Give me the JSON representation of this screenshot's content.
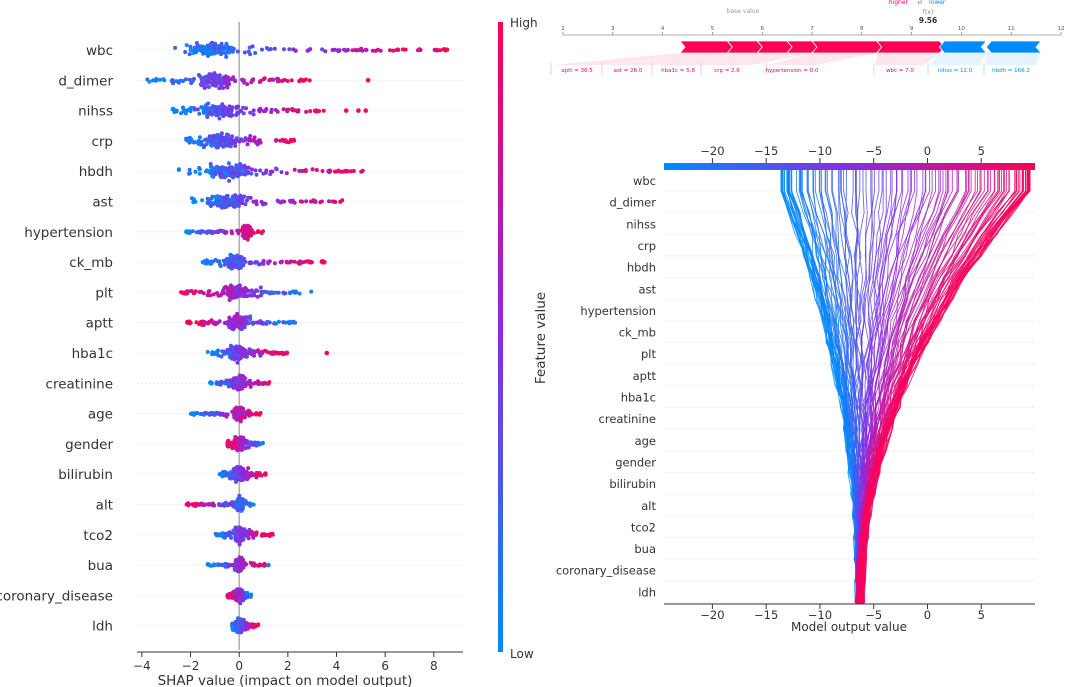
{
  "colors": {
    "high": "#ff0052",
    "mid": "#8a2be2",
    "low": "#008bfb",
    "axis": "#333333",
    "grid": "#cccccc"
  },
  "chart_data": [
    {
      "id": "summary",
      "type": "scatter",
      "title": "",
      "xlabel": "SHAP value (impact on model output)",
      "ylabel": "Feature value",
      "xlim": [
        -4.2,
        9.2
      ],
      "xticks": [
        -4,
        -2,
        0,
        2,
        4,
        6,
        8
      ],
      "xtick_labels": [
        "−4",
        "−2",
        "0",
        "2",
        "4",
        "6",
        "8"
      ],
      "colorbar": {
        "high_label": "High",
        "low_label": "Low"
      },
      "features": [
        {
          "name": "wbc",
          "min": -3.0,
          "max": 9.0,
          "center": -1.2,
          "dense_lo": -2.0,
          "dense_hi": 2.5,
          "outliers": []
        },
        {
          "name": "d_dimer",
          "min": -3.8,
          "max": 3.0,
          "center": -1.0,
          "dense_lo": -2.5,
          "dense_hi": 1.5,
          "outliers": [
            5.3
          ]
        },
        {
          "name": "nihss",
          "min": -2.8,
          "max": 3.5,
          "center": -0.8,
          "dense_lo": -2.0,
          "dense_hi": 2.0,
          "outliers": [
            4.4,
            4.9,
            5.2
          ]
        },
        {
          "name": "crp",
          "min": -2.2,
          "max": 2.3,
          "center": -0.7,
          "dense_lo": -1.5,
          "dense_hi": 1.5,
          "outliers": []
        },
        {
          "name": "hbdh",
          "min": -2.5,
          "max": 5.2,
          "center": -0.5,
          "dense_lo": -2.0,
          "dense_hi": 2.5,
          "outliers": []
        },
        {
          "name": "ast",
          "min": -2.0,
          "max": 4.4,
          "center": -0.5,
          "dense_lo": -1.5,
          "dense_hi": 2.0,
          "outliers": []
        },
        {
          "name": "hypertension",
          "min": -2.2,
          "max": 1.0,
          "center": 0.3,
          "dense_lo": -0.2,
          "dense_hi": 0.6,
          "outliers": []
        },
        {
          "name": "ck_mb",
          "min": -1.5,
          "max": 3.5,
          "center": -0.2,
          "dense_lo": -0.8,
          "dense_hi": 1.0,
          "outliers": [
            3.5
          ]
        },
        {
          "name": "plt",
          "min": -2.5,
          "max": 3.0,
          "center": -0.1,
          "dense_lo": -1.2,
          "dense_hi": 1.2,
          "outliers": []
        },
        {
          "name": "aptt",
          "min": -2.2,
          "max": 2.3,
          "center": -0.1,
          "dense_lo": -1.0,
          "dense_hi": 1.0,
          "outliers": []
        },
        {
          "name": "hba1c",
          "min": -1.3,
          "max": 2.0,
          "center": -0.1,
          "dense_lo": -0.8,
          "dense_hi": 0.8,
          "outliers": [
            3.6
          ]
        },
        {
          "name": "creatinine",
          "min": -1.2,
          "max": 1.3,
          "center": 0.0,
          "dense_lo": -0.6,
          "dense_hi": 0.6,
          "outliers": []
        },
        {
          "name": "age",
          "min": -2.0,
          "max": 0.9,
          "center": 0.0,
          "dense_lo": -0.5,
          "dense_hi": 0.5,
          "outliers": []
        },
        {
          "name": "gender",
          "min": -0.5,
          "max": 1.0,
          "center": 0.0,
          "dense_lo": -0.4,
          "dense_hi": 0.6,
          "outliers": []
        },
        {
          "name": "bilirubin",
          "min": -0.8,
          "max": 1.1,
          "center": 0.0,
          "dense_lo": -0.5,
          "dense_hi": 0.6,
          "outliers": []
        },
        {
          "name": "alt",
          "min": -2.2,
          "max": 0.6,
          "center": 0.0,
          "dense_lo": -0.5,
          "dense_hi": 0.4,
          "outliers": []
        },
        {
          "name": "tco2",
          "min": -1.0,
          "max": 1.4,
          "center": 0.0,
          "dense_lo": -0.4,
          "dense_hi": 0.6,
          "outliers": []
        },
        {
          "name": "bua",
          "min": -1.3,
          "max": 1.1,
          "center": 0.0,
          "dense_lo": -0.4,
          "dense_hi": 0.4,
          "outliers": [
            1.2
          ]
        },
        {
          "name": "coronary_disease",
          "min": -0.5,
          "max": 0.5,
          "center": 0.0,
          "dense_lo": -0.3,
          "dense_hi": 0.4,
          "outliers": []
        },
        {
          "name": "ldh",
          "min": -0.3,
          "max": 0.8,
          "center": 0.0,
          "dense_lo": -0.2,
          "dense_hi": 0.6,
          "outliers": []
        }
      ]
    },
    {
      "id": "force",
      "type": "bar",
      "labels": {
        "higher": "higher",
        "arrows": "⇄",
        "lower": "lower",
        "fx_label": "f(x)",
        "fx_value": "9.56",
        "base_value": "base value"
      },
      "xlim": [
        2,
        12
      ],
      "xticks": [
        2,
        3,
        4,
        5,
        6,
        7,
        8,
        9,
        10,
        11,
        12
      ],
      "xtick_labels": [
        "2",
        "3",
        "4",
        "5",
        "6",
        "7",
        "8",
        "9",
        "10",
        "11",
        "12"
      ],
      "output_value": 9.56,
      "positive_range": [
        4.35,
        9.56
      ],
      "negative_range": [
        9.56,
        11.6
      ],
      "positive_contributions": [
        {
          "label": "aptt = 36.5",
          "start": 4.35,
          "end": 5.3
        },
        {
          "label": "ast = 26.0",
          "start": 5.3,
          "end": 5.9
        },
        {
          "label": "hba1c = 5.8",
          "start": 5.9,
          "end": 6.5
        },
        {
          "label": "crp = 2.6",
          "start": 6.5,
          "end": 7.0
        },
        {
          "label": "hypertension = 0.0",
          "start": 7.0,
          "end": 8.3
        },
        {
          "label": "wbc = 7.0",
          "start": 8.3,
          "end": 9.56
        }
      ],
      "negative_contributions": [
        {
          "label": "nihss = 12.0",
          "start": 9.56,
          "end": 10.5
        },
        {
          "label": "hbdh = 166.2",
          "start": 10.5,
          "end": 11.6
        }
      ]
    },
    {
      "id": "decision",
      "type": "line",
      "xlabel": "Model output value",
      "xlim": [
        -24.5,
        10
      ],
      "xticks": [
        -20,
        -15,
        -10,
        -5,
        0,
        5
      ],
      "xtick_labels": [
        "−20",
        "−15",
        "−10",
        "−5",
        "0",
        "5"
      ],
      "base_value": -6.3,
      "features": [
        "wbc",
        "d_dimer",
        "nihss",
        "crp",
        "hbdh",
        "ast",
        "hypertension",
        "ck_mb",
        "plt",
        "aptt",
        "hba1c",
        "creatinine",
        "age",
        "gender",
        "bilirubin",
        "alt",
        "tco2",
        "bua",
        "coronary_disease",
        "ldh"
      ],
      "output_range": [
        -13.5,
        10
      ],
      "line_count": 140
    }
  ]
}
